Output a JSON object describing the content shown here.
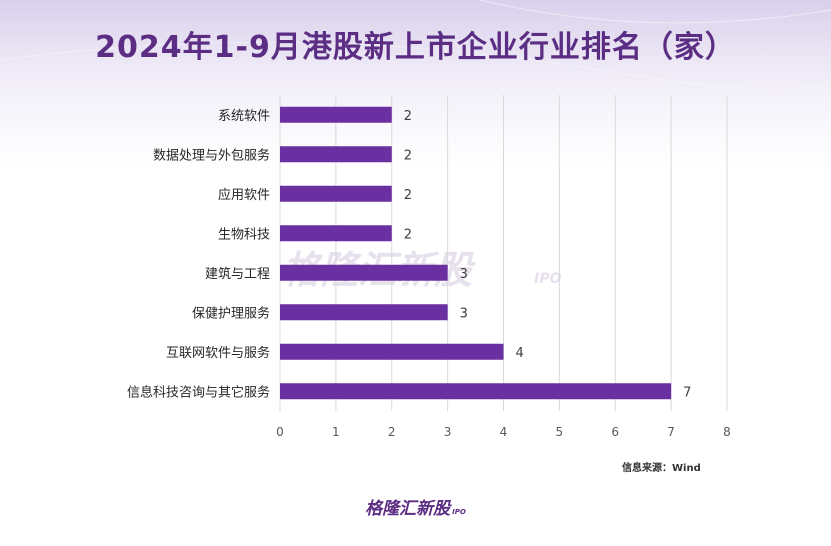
{
  "title": "2024年1-9月港股新上市企业行业排名（家）",
  "chart_data": {
    "type": "bar",
    "orientation": "horizontal",
    "categories": [
      "系统软件",
      "数据处理与外包服务",
      "应用软件",
      "生物科技",
      "建筑与工程",
      "保健护理服务",
      "互联网软件与服务",
      "信息科技咨询与其它服务"
    ],
    "values": [
      2,
      2,
      2,
      2,
      3,
      3,
      4,
      7
    ],
    "data_labels": [
      "2",
      "2",
      "2",
      "2",
      "3",
      "3",
      "4",
      "7"
    ],
    "xlim": [
      0,
      8
    ],
    "ticks": [
      "0",
      "1",
      "2",
      "3",
      "4",
      "5",
      "6",
      "7",
      "8"
    ],
    "grid": true,
    "bar_color": "#6a2fa0"
  },
  "source": "信息来源：Wind",
  "watermark": {
    "text": "格隆汇新股",
    "sub": "IPO"
  },
  "footer_logo": {
    "text": "格隆汇新股",
    "sub": "IPO"
  }
}
